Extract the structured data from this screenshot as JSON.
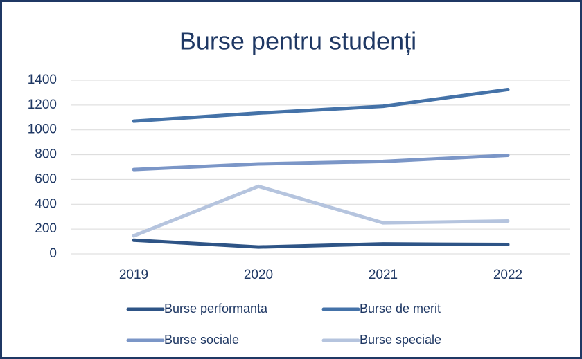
{
  "chart_data": {
    "type": "line",
    "title": "Burse pentru studenți",
    "categories": [
      "2019",
      "2020",
      "2021",
      "2022"
    ],
    "series": [
      {
        "name": "Burse performanta",
        "color": "#2e5486",
        "values": [
          110,
          55,
          80,
          75
        ]
      },
      {
        "name": "Burse de merit",
        "color": "#4472a8",
        "values": [
          1070,
          1135,
          1190,
          1325
        ]
      },
      {
        "name": "Burse sociale",
        "color": "#7b96c7",
        "values": [
          680,
          725,
          745,
          795
        ]
      },
      {
        "name": "Burse speciale",
        "color": "#b5c4de",
        "values": [
          145,
          545,
          250,
          265
        ]
      }
    ],
    "ylim": [
      0,
      1400
    ],
    "yticks": [
      0,
      200,
      400,
      600,
      800,
      1000,
      1200,
      1400
    ],
    "grid": true,
    "legend": "bottom"
  }
}
